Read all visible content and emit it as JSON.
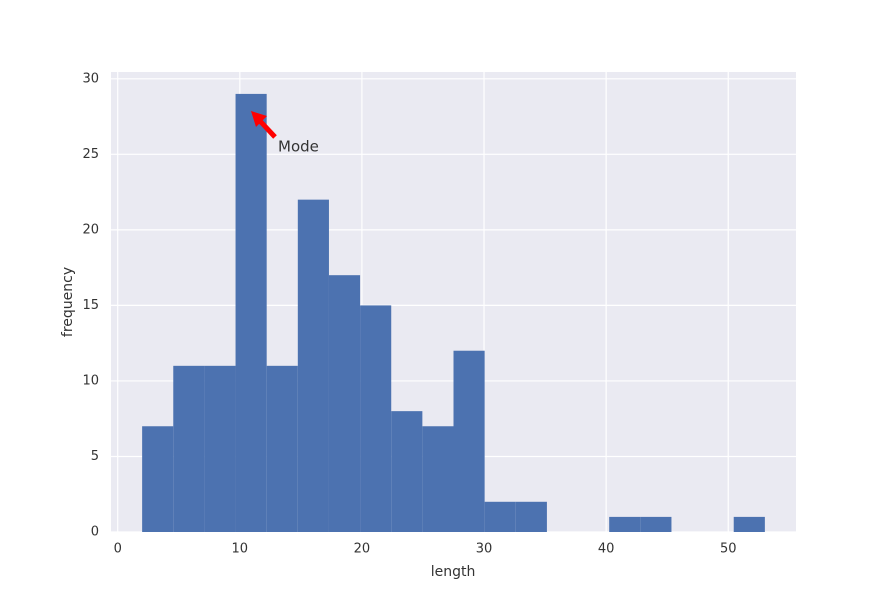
{
  "chart_data": {
    "type": "histogram",
    "x_label": "length",
    "y_label": "frequency",
    "bins": [
      2,
      4.55,
      7.1,
      9.65,
      12.2,
      14.75,
      17.3,
      19.85,
      22.4,
      24.95,
      27.5,
      30.05,
      32.6,
      35.15,
      37.7,
      40.25,
      42.8,
      45.35,
      47.9,
      50.45,
      53
    ],
    "values": [
      7,
      11,
      11,
      29,
      11,
      22,
      17,
      15,
      8,
      7,
      12,
      2,
      2,
      0,
      0,
      1,
      1,
      0,
      0,
      1
    ],
    "color": "#4c72b0",
    "xlim": [
      -0.55,
      55.55
    ],
    "xticks": [
      0,
      10,
      20,
      30,
      40,
      50
    ],
    "ylim": [
      0,
      30.45
    ],
    "yticks": [
      0,
      5,
      10,
      15,
      20,
      25,
      30
    ],
    "grid": true,
    "annotation": {
      "text": "Mode",
      "arrow_color": "#ff0000"
    }
  }
}
